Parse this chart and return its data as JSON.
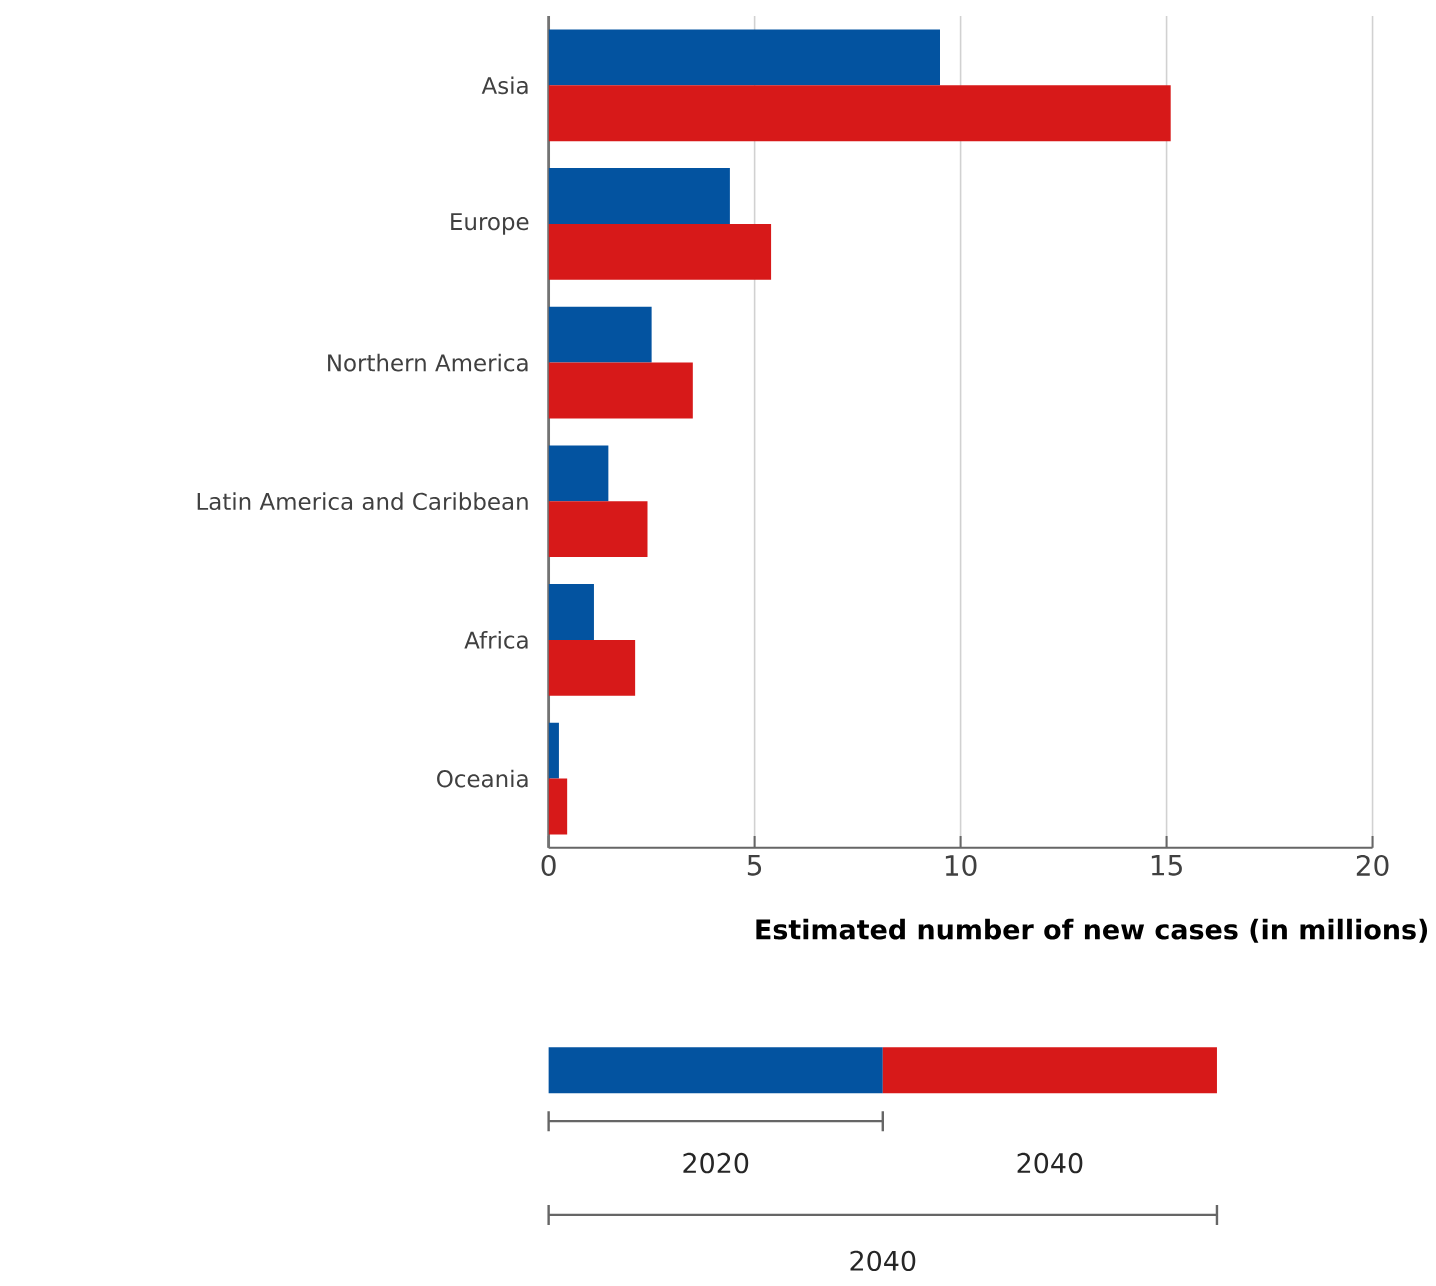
{
  "chart_data": {
    "type": "bar",
    "orientation": "horizontal",
    "xlabel": "Estimated number of new cases (in millions)",
    "categories": [
      "Asia",
      "Europe",
      "Northern America",
      "Latin America and Caribbean",
      "Africa",
      "Oceania"
    ],
    "series": [
      {
        "name": "2020",
        "color": "#0353a0",
        "values": [
          9.5,
          4.4,
          2.5,
          1.45,
          1.1,
          0.25
        ]
      },
      {
        "name": "2040",
        "color": "#d71919",
        "values": [
          15.1,
          5.4,
          3.5,
          2.4,
          2.1,
          0.45
        ]
      }
    ],
    "xlim": [
      0,
      20
    ],
    "xticks": [
      0,
      5,
      10,
      15,
      20
    ],
    "grid": "x",
    "legend": "bottom",
    "annotations": [
      "2040"
    ]
  }
}
